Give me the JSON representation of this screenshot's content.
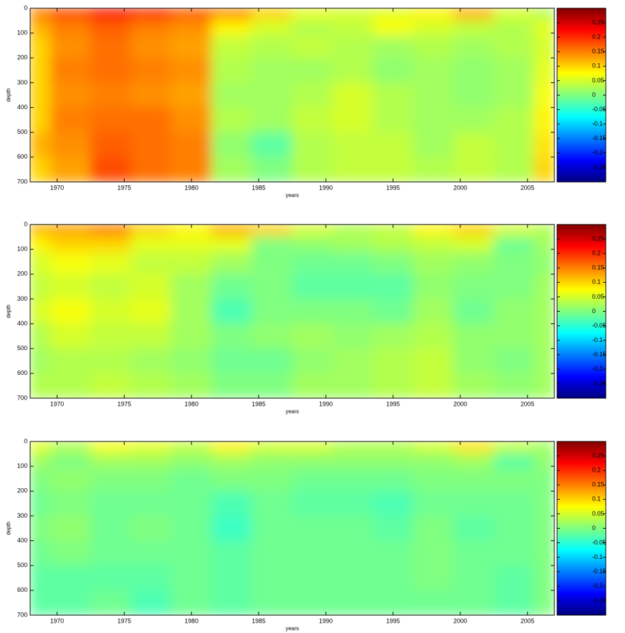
{
  "chart_data": [
    {
      "type": "heatmap",
      "xlabel": "years",
      "ylabel": "depth",
      "colormap": "jet",
      "x": [
        1968,
        1971,
        1974,
        1977,
        1980,
        1983,
        1986,
        1989,
        1992,
        1995,
        1998,
        2001,
        2004,
        2007
      ],
      "y": [
        20,
        75,
        150,
        250,
        350,
        450,
        550,
        650
      ],
      "z": [
        [
          0.15,
          0.18,
          0.22,
          0.2,
          0.17,
          0.14,
          0.1,
          0.06,
          0.05,
          0.06,
          0.08,
          0.12,
          0.05,
          0.03
        ],
        [
          0.12,
          0.15,
          0.17,
          0.15,
          0.14,
          0.08,
          0.05,
          0.03,
          0.04,
          0.07,
          0.05,
          0.04,
          0.03,
          0.06
        ],
        [
          0.1,
          0.14,
          0.16,
          0.14,
          0.13,
          0.04,
          0.03,
          0.04,
          0.03,
          0.02,
          0.03,
          0.02,
          0.03,
          0.05
        ],
        [
          0.1,
          0.15,
          0.16,
          0.15,
          0.14,
          0.03,
          0.02,
          0.02,
          0.03,
          0.01,
          0.02,
          0.01,
          0.02,
          0.06
        ],
        [
          0.1,
          0.14,
          0.15,
          0.14,
          0.13,
          0.02,
          0.02,
          0.03,
          0.05,
          0.03,
          0.02,
          0.01,
          0.02,
          0.07
        ],
        [
          0.1,
          0.15,
          0.16,
          0.16,
          0.14,
          0.03,
          0.02,
          0.04,
          0.05,
          0.03,
          0.02,
          0.02,
          0.03,
          0.08
        ],
        [
          0.12,
          0.14,
          0.17,
          0.16,
          0.15,
          0.01,
          -0.02,
          0.03,
          0.04,
          0.04,
          0.02,
          0.04,
          0.03,
          0.09
        ],
        [
          0.1,
          0.13,
          0.18,
          0.16,
          0.15,
          0.02,
          0.0,
          0.03,
          0.04,
          0.04,
          0.03,
          0.04,
          0.03,
          0.1
        ]
      ],
      "xlim": [
        1968,
        2007
      ],
      "xticks": [
        1970,
        1975,
        1980,
        1985,
        1990,
        1995,
        2000,
        2005
      ],
      "ylim": [
        0,
        700
      ],
      "yticks": [
        0,
        100,
        200,
        300,
        400,
        500,
        600,
        700
      ],
      "clim": [
        -0.3,
        0.3
      ],
      "cticks": [
        -0.25,
        -0.2,
        -0.15,
        -0.1,
        -0.05,
        0,
        0.05,
        0.1,
        0.15,
        0.2,
        0.25
      ]
    },
    {
      "type": "heatmap",
      "xlabel": "years",
      "ylabel": "depth",
      "colormap": "jet",
      "x": [
        1968,
        1971,
        1974,
        1977,
        1980,
        1983,
        1986,
        1989,
        1992,
        1995,
        1998,
        2001,
        2004,
        2007
      ],
      "y": [
        20,
        75,
        150,
        250,
        350,
        450,
        550,
        650
      ],
      "z": [
        [
          0.12,
          0.13,
          0.15,
          0.1,
          0.08,
          0.12,
          0.1,
          0.05,
          0.03,
          0.04,
          0.08,
          0.1,
          0.05,
          0.03
        ],
        [
          0.08,
          0.1,
          0.1,
          0.06,
          0.06,
          0.06,
          0.0,
          0.01,
          0.02,
          0.03,
          0.04,
          0.05,
          -0.01,
          0.02
        ],
        [
          0.05,
          0.07,
          0.06,
          0.04,
          0.04,
          0.02,
          0.0,
          -0.01,
          -0.01,
          0.0,
          0.02,
          0.01,
          0.0,
          0.01
        ],
        [
          0.04,
          0.05,
          0.04,
          0.05,
          0.02,
          -0.01,
          0.0,
          -0.02,
          -0.02,
          -0.02,
          0.01,
          0.0,
          0.0,
          0.02
        ],
        [
          0.05,
          0.07,
          0.05,
          0.06,
          0.02,
          -0.03,
          0.0,
          0.0,
          0.0,
          -0.01,
          0.02,
          -0.01,
          0.01,
          0.02
        ],
        [
          0.03,
          0.05,
          0.04,
          0.04,
          0.02,
          0.0,
          0.01,
          0.02,
          0.01,
          0.02,
          0.03,
          0.01,
          0.01,
          0.02
        ],
        [
          0.02,
          0.03,
          0.03,
          0.02,
          0.01,
          -0.01,
          -0.01,
          0.01,
          0.02,
          0.03,
          0.04,
          0.01,
          0.0,
          0.02
        ],
        [
          0.03,
          0.03,
          0.04,
          0.03,
          0.02,
          0.0,
          0.0,
          0.02,
          0.02,
          0.03,
          0.04,
          0.02,
          0.01,
          0.02
        ]
      ],
      "xlim": [
        1968,
        2007
      ],
      "xticks": [
        1970,
        1975,
        1980,
        1985,
        1990,
        1995,
        2000,
        2005
      ],
      "ylim": [
        0,
        700
      ],
      "yticks": [
        0,
        100,
        200,
        300,
        400,
        500,
        600,
        700
      ],
      "clim": [
        -0.3,
        0.3
      ],
      "cticks": [
        -0.25,
        -0.2,
        -0.15,
        -0.1,
        -0.05,
        0,
        0.05,
        0.1,
        0.15,
        0.2,
        0.25
      ]
    },
    {
      "type": "heatmap",
      "xlabel": "years",
      "ylabel": "depth",
      "colormap": "jet",
      "x": [
        1968,
        1971,
        1974,
        1977,
        1980,
        1983,
        1986,
        1989,
        1992,
        1995,
        1998,
        2001,
        2004,
        2007
      ],
      "y": [
        20,
        75,
        150,
        250,
        350,
        450,
        550,
        650
      ],
      "z": [
        [
          0.06,
          0.03,
          0.07,
          0.06,
          0.04,
          0.08,
          0.05,
          0.05,
          0.03,
          0.03,
          0.05,
          0.09,
          0.04,
          0.02
        ],
        [
          0.02,
          0.0,
          0.02,
          0.02,
          0.01,
          0.02,
          0.01,
          0.01,
          0.01,
          0.01,
          0.01,
          0.02,
          -0.02,
          0.01
        ],
        [
          0.0,
          0.01,
          0.0,
          0.0,
          -0.01,
          0.0,
          0.0,
          -0.01,
          -0.01,
          -0.01,
          0.0,
          0.0,
          0.0,
          0.0
        ],
        [
          -0.01,
          0.0,
          -0.01,
          -0.01,
          -0.01,
          -0.03,
          -0.01,
          -0.02,
          -0.02,
          -0.03,
          -0.01,
          -0.01,
          -0.01,
          0.0
        ],
        [
          0.0,
          0.01,
          -0.01,
          0.0,
          -0.01,
          -0.04,
          -0.01,
          -0.01,
          -0.01,
          -0.02,
          0.0,
          -0.02,
          -0.01,
          0.0
        ],
        [
          -0.01,
          0.0,
          -0.01,
          -0.01,
          -0.01,
          -0.02,
          -0.01,
          -0.01,
          -0.01,
          -0.01,
          0.0,
          -0.01,
          -0.01,
          0.0
        ],
        [
          -0.02,
          -0.02,
          -0.02,
          -0.02,
          -0.01,
          -0.02,
          -0.01,
          -0.01,
          -0.01,
          -0.01,
          0.0,
          -0.01,
          -0.02,
          0.0
        ],
        [
          -0.02,
          -0.02,
          -0.01,
          -0.03,
          -0.01,
          -0.02,
          -0.01,
          -0.01,
          -0.01,
          -0.01,
          -0.01,
          -0.01,
          -0.02,
          0.0
        ]
      ],
      "xlim": [
        1968,
        2007
      ],
      "xticks": [
        1970,
        1975,
        1980,
        1985,
        1990,
        1995,
        2000,
        2005
      ],
      "ylim": [
        0,
        700
      ],
      "yticks": [
        0,
        100,
        200,
        300,
        400,
        500,
        600,
        700
      ],
      "clim": [
        -0.3,
        0.3
      ],
      "cticks": [
        -0.25,
        -0.2,
        -0.15,
        -0.1,
        -0.05,
        0,
        0.05,
        0.1,
        0.15,
        0.2,
        0.25
      ]
    }
  ]
}
